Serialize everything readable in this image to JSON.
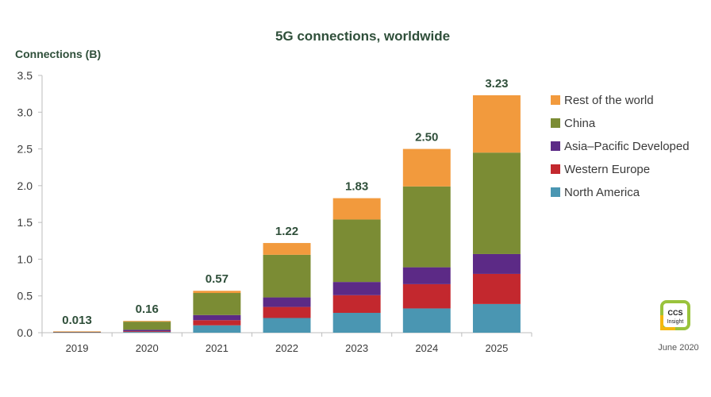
{
  "chart_data": {
    "type": "bar",
    "stacked": true,
    "title": "5G connections, worldwide",
    "ylabel": "Connections (B)",
    "xlabel": "",
    "ylim": [
      0,
      3.5
    ],
    "yticks": [
      "0.0",
      "0.5",
      "1.0",
      "1.5",
      "2.0",
      "2.5",
      "3.0",
      "3.5"
    ],
    "categories": [
      "2019",
      "2020",
      "2021",
      "2022",
      "2023",
      "2024",
      "2025"
    ],
    "totals_labels": [
      "0.013",
      "0.16",
      "0.57",
      "1.22",
      "1.83",
      "2.50",
      "3.23"
    ],
    "series": [
      {
        "name": "North America",
        "color": "#4a96b2",
        "values": [
          0.003,
          0.01,
          0.1,
          0.2,
          0.27,
          0.33,
          0.39
        ]
      },
      {
        "name": "Western Europe",
        "color": "#c3282e",
        "values": [
          0.002,
          0.01,
          0.07,
          0.15,
          0.24,
          0.33,
          0.41
        ]
      },
      {
        "name": "Asia–Pacific Developed",
        "color": "#5c2a86",
        "values": [
          0.002,
          0.02,
          0.07,
          0.13,
          0.18,
          0.23,
          0.27
        ]
      },
      {
        "name": "China",
        "color": "#7b8c34",
        "values": [
          0.004,
          0.11,
          0.3,
          0.58,
          0.85,
          1.1,
          1.38
        ]
      },
      {
        "name": "Rest of the world",
        "color": "#f29a3d",
        "values": [
          0.002,
          0.01,
          0.03,
          0.16,
          0.29,
          0.51,
          0.78
        ]
      }
    ],
    "grid": false,
    "legend_position": "right",
    "legend_order": [
      "Rest of the world",
      "China",
      "Asia–Pacific Developed",
      "Western Europe",
      "North America"
    ]
  },
  "logo": {
    "text": "CCS Insight",
    "color_a": "#9ac33c",
    "color_b": "#f5b80f"
  },
  "date": "June 2020"
}
